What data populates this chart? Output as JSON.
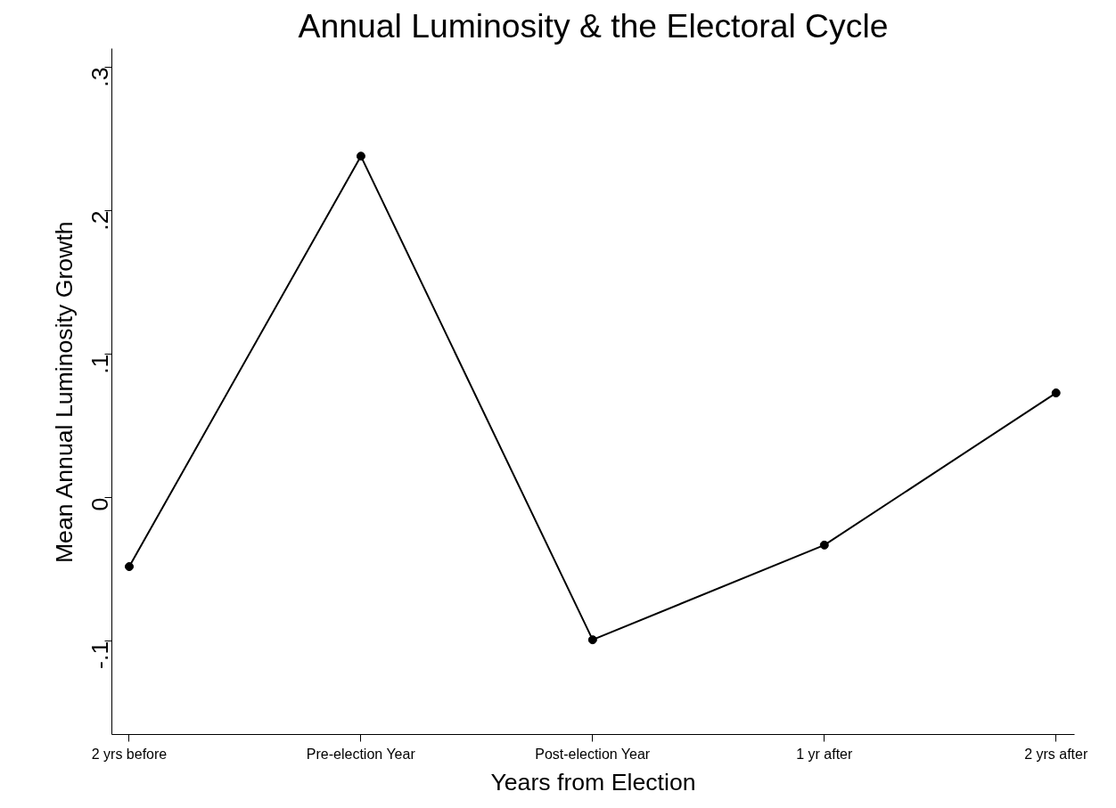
{
  "chart_data": {
    "type": "line",
    "title": "Annual Luminosity & the Electoral Cycle",
    "xlabel": "Years from Election",
    "ylabel": "Mean Annual Luminosity Growth",
    "categories": [
      "2 yrs before",
      "Pre-election Year",
      "Post-election Year",
      "1 yr after",
      "2 yrs after"
    ],
    "series": [
      {
        "color": "#000000",
        "values": [
          -0.048,
          0.238,
          -0.099,
          -0.033,
          0.073
        ]
      }
    ],
    "ylim": [
      -0.165,
      0.313
    ],
    "yticks": [
      {
        "value": -0.1,
        "label": "-.1"
      },
      0,
      {
        "value": 0.1,
        "label": ".1"
      },
      {
        "value": 0.2,
        "label": ".2"
      },
      {
        "value": 0.3,
        "label": ".3"
      }
    ],
    "grid": false,
    "marker": "circle",
    "line_style": "solid"
  }
}
